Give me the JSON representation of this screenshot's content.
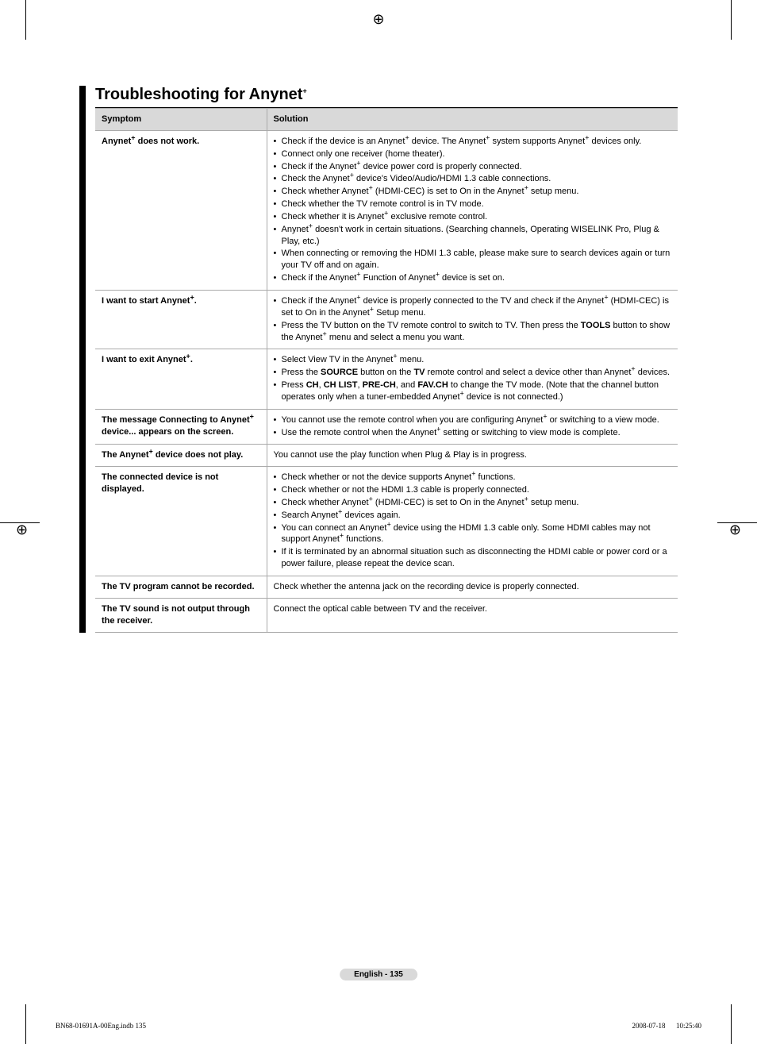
{
  "title": "Troubleshooting for Anynet+",
  "table": {
    "headers": [
      "Symptom",
      "Solution"
    ],
    "rows": [
      {
        "symptom": "Anynet+ does not work.",
        "solution_type": "list",
        "items": [
          "Check if the device is an Anynet+ device. The Anynet+ system supports Anynet+ devices only.",
          "Connect only one receiver (home theater).",
          "Check if the Anynet+ device power cord is properly connected.",
          "Check the Anynet+ device's Video/Audio/HDMI 1.3 cable connections.",
          "Check whether Anynet+ (HDMI-CEC) is set to On in the Anynet+ setup menu.",
          "Check whether the TV remote control is in TV mode.",
          "Check whether it is Anynet+ exclusive remote control.",
          "Anynet+ doesn't work in certain situations. (Searching channels, Operating WISELINK Pro, Plug & Play, etc.)",
          "When connecting or removing the HDMI 1.3 cable, please make sure to search devices again or turn your TV off and on again.",
          "Check if the Anynet+ Function of Anynet+ device is set on."
        ]
      },
      {
        "symptom": "I want to start Anynet+.",
        "solution_type": "list",
        "items": [
          "Check if the Anynet+ device is properly connected to the TV and check if the Anynet+ (HDMI-CEC) is set to On in the Anynet+ Setup menu.",
          "Press the TV button on the TV remote control to switch to TV. Then press the <b>TOOLS</b> button to show the Anynet+ menu and select a menu you want."
        ]
      },
      {
        "symptom": "I want to exit Anynet+.",
        "solution_type": "list",
        "items": [
          "Select View TV in the Anynet+ menu.",
          "Press the <b>SOURCE</b> button on the <b>TV</b> remote control and select a device other than Anynet+ devices.",
          "Press <b>CH</b>, <b>CH LIST</b>, <b>PRE-CH</b>, and <b>FAV.CH</b> to change the TV mode. (Note that the channel button operates only when a tuner-embedded Anynet+ device is not connected.)"
        ]
      },
      {
        "symptom": "The message Connecting to Anynet+ device... appears on the screen.",
        "solution_type": "list",
        "items": [
          "You cannot use the remote control when you are configuring Anynet+ or switching to a view mode.",
          "Use the remote control when the Anynet+ setting or switching to view mode is complete."
        ]
      },
      {
        "symptom": "The Anynet+ device does not play.",
        "solution_type": "text",
        "text": "You cannot use the play function when Plug & Play is in progress."
      },
      {
        "symptom": "The connected device is not displayed.",
        "solution_type": "list",
        "items": [
          "Check whether or not the device supports Anynet+ functions.",
          "Check whether or not the HDMI 1.3 cable is properly connected.",
          "Check whether Anynet+ (HDMI-CEC) is set to On in the Anynet+ setup menu.",
          "Search Anynet+ devices again.",
          "You can connect an Anynet+ device using the HDMI 1.3 cable only. Some HDMI cables may not support Anynet+ functions.",
          "If it is terminated by an abnormal situation such as disconnecting the HDMI cable or power cord or a power failure, please repeat the device scan."
        ]
      },
      {
        "symptom": "The TV program cannot be recorded.",
        "solution_type": "text",
        "text": "Check whether the antenna jack on the recording device is properly connected."
      },
      {
        "symptom": "The TV sound is not output through the receiver.",
        "solution_type": "text",
        "text": "Connect the optical cable between TV and the receiver."
      }
    ]
  },
  "page_label": "English - 135",
  "footer_left": "BN68-01691A-00Eng.indb   135",
  "footer_right": "2008-07-18      10:25:40",
  "colors": {
    "header_bg": "#d9d9d9",
    "border": "#aaaaaa",
    "badge_bg": "#d9d9d9"
  }
}
